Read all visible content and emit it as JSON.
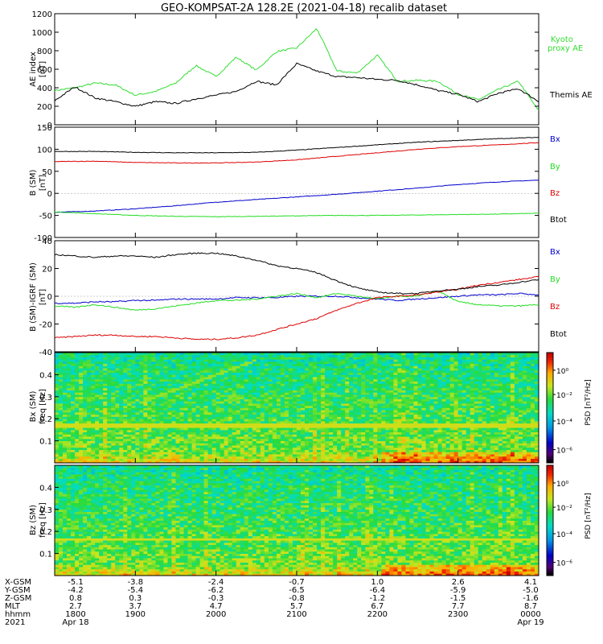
{
  "title": "GEO-KOMPSAT-2A 128.2E (2021-04-18) recalib dataset",
  "colors": {
    "black": "#000000",
    "red": "#dd0000",
    "green": "#22dd22",
    "blue": "#0000cc",
    "kyoto": "#33dd33"
  },
  "chart_data": [
    {
      "type": "line",
      "panel": "ae",
      "ylabel": "AE index",
      "yunit": "[nT]",
      "ylim": [
        0,
        1200
      ],
      "yticks": [
        "0",
        "200",
        "400",
        "600",
        "800",
        "1000",
        "1200"
      ],
      "x": [
        1800,
        1815,
        1830,
        1845,
        1900,
        1915,
        1930,
        1945,
        2000,
        2015,
        2030,
        2045,
        2100,
        2115,
        2130,
        2145,
        2200,
        2215,
        2230,
        2245,
        2300,
        2315,
        2330,
        2345,
        2400
      ],
      "series": [
        {
          "name": "Kyoto proxy AE",
          "color": "#33dd33",
          "values": [
            370,
            400,
            450,
            430,
            320,
            360,
            450,
            640,
            520,
            730,
            590,
            790,
            830,
            1040,
            580,
            560,
            750,
            470,
            480,
            470,
            330,
            270,
            380,
            470,
            150
          ]
        },
        {
          "name": "Themis AE",
          "color": "#000000",
          "values": [
            260,
            410,
            290,
            250,
            200,
            250,
            230,
            280,
            320,
            360,
            470,
            430,
            660,
            580,
            520,
            510,
            490,
            480,
            430,
            370,
            330,
            250,
            340,
            390,
            250
          ]
        }
      ]
    },
    {
      "type": "line",
      "panel": "bsm",
      "ylabel": "B (SM)",
      "yunit": "[nT]",
      "ylim": [
        -100,
        150
      ],
      "yticks": [
        "-100",
        "-50",
        "0",
        "50",
        "100",
        "150"
      ],
      "x": [
        1800,
        1830,
        1900,
        1930,
        2000,
        2030,
        2100,
        2130,
        2200,
        2230,
        2300,
        2330,
        2400
      ],
      "series": [
        {
          "name": "Bx",
          "color": "#0000cc",
          "values": [
            -43,
            -40,
            -35,
            -28,
            -20,
            -14,
            -8,
            -2,
            5,
            12,
            20,
            26,
            30
          ]
        },
        {
          "name": "By",
          "color": "#22dd22",
          "values": [
            -42,
            -46,
            -50,
            -52,
            -53,
            -52,
            -51,
            -50,
            -50,
            -49,
            -48,
            -47,
            -45
          ]
        },
        {
          "name": "Bz",
          "color": "#dd0000",
          "values": [
            72,
            73,
            70,
            69,
            69,
            71,
            76,
            84,
            92,
            100,
            106,
            110,
            115
          ]
        },
        {
          "name": "Btot",
          "color": "#000000",
          "values": [
            95,
            95,
            93,
            92,
            92,
            93,
            98,
            104,
            110,
            116,
            120,
            124,
            127
          ]
        }
      ]
    },
    {
      "type": "line",
      "panel": "digrf",
      "ylabel": "B (SM)-IGRF (SM)",
      "yunit": "[nT]",
      "ylim": [
        -40,
        40
      ],
      "yticks": [
        "-40",
        "-20",
        "0",
        "20",
        "40"
      ],
      "x": [
        1800,
        1815,
        1830,
        1845,
        1900,
        1915,
        1930,
        1945,
        2000,
        2015,
        2030,
        2045,
        2100,
        2115,
        2130,
        2145,
        2200,
        2215,
        2230,
        2245,
        2300,
        2315,
        2330,
        2345,
        2400
      ],
      "series": [
        {
          "name": "Bx",
          "color": "#0000cc",
          "values": [
            -5,
            -5,
            -4,
            -4,
            -3,
            -3,
            -2,
            -2,
            -2,
            -1,
            -1,
            -1,
            0,
            0,
            0,
            -1,
            -2,
            -3,
            -2,
            -1,
            0,
            1,
            1,
            2,
            1
          ]
        },
        {
          "name": "By",
          "color": "#22dd22",
          "values": [
            -7,
            -8,
            -6,
            -8,
            -10,
            -9,
            -7,
            -5,
            -3,
            -3,
            -2,
            0,
            2,
            -1,
            2,
            0,
            -2,
            0,
            0,
            4,
            -4,
            -6,
            -7,
            -7,
            -6
          ]
        },
        {
          "name": "Bz",
          "color": "#dd0000",
          "values": [
            -30,
            -29,
            -28,
            -28,
            -29,
            -29,
            -30,
            -31,
            -31,
            -30,
            -28,
            -24,
            -20,
            -16,
            -10,
            -5,
            -1,
            0,
            1,
            3,
            5,
            8,
            10,
            12,
            14
          ]
        },
        {
          "name": "Btot",
          "color": "#000000",
          "values": [
            30,
            29,
            28,
            29,
            29,
            28,
            30,
            31,
            31,
            29,
            26,
            22,
            20,
            17,
            11,
            6,
            3,
            2,
            2,
            4,
            5,
            7,
            8,
            10,
            12
          ]
        }
      ]
    },
    {
      "type": "heatmap",
      "panel": "bx_spec",
      "ylabel": "Bx (SM)",
      "yunit": "freq [Hz]",
      "ylim": [
        0,
        0.5
      ],
      "yticks": [
        "0.1",
        "0.2",
        "0.3",
        "0.4"
      ],
      "colorbar_label": "PSD [nT²/Hz]",
      "colorbar_ticks": [
        "10⁰",
        "10⁻²",
        "10⁻⁴",
        "10⁻⁶"
      ],
      "pc_band_hz": 0.17
    },
    {
      "type": "heatmap",
      "panel": "bz_spec",
      "ylabel": "Bz (SM)",
      "yunit": "freq [Hz]",
      "ylim": [
        0,
        0.5
      ],
      "yticks": [
        "0.1",
        "0.2",
        "0.3",
        "0.4"
      ],
      "colorbar_label": "PSD [nT²/Hz]",
      "colorbar_ticks": [
        "10⁰",
        "10⁻²",
        "10⁻⁴",
        "10⁻⁶"
      ],
      "pc_band_hz": 0.165
    }
  ],
  "orbit": {
    "row_labels": [
      "X-GSM",
      "Y-GSM",
      "Z-GSM",
      "MLT",
      "hhmm",
      "2021"
    ],
    "columns": [
      [
        "-5.1",
        "-4.2",
        "0.8",
        "2.7",
        "1800",
        "Apr 18"
      ],
      [
        "-3.8",
        "-5.4",
        "0.3",
        "3.7",
        "1900",
        ""
      ],
      [
        "-2.4",
        "-6.2",
        "-0.3",
        "4.7",
        "2000",
        ""
      ],
      [
        "-0.7",
        "-6.5",
        "-0.8",
        "5.7",
        "2100",
        ""
      ],
      [
        "1.0",
        "-6.4",
        "-1.2",
        "6.7",
        "2200",
        ""
      ],
      [
        "2.6",
        "-5.9",
        "-1.5",
        "7.7",
        "2300",
        ""
      ],
      [
        "4.1",
        "-5.0",
        "-1.6",
        "8.7",
        "0000",
        "Apr 19"
      ]
    ]
  }
}
